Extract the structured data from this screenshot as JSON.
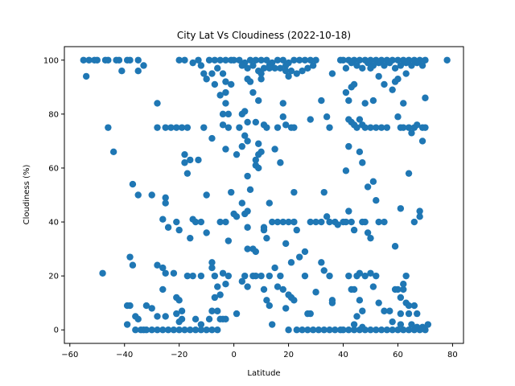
{
  "chart_data": {
    "type": "scatter",
    "title": "City Lat Vs Cloudiness (2022-10-18)",
    "xlabel": "Latitude",
    "ylabel": "Cloudiness  (%)",
    "xlim": [
      -62,
      84
    ],
    "ylim": [
      -5,
      105
    ],
    "xticks": [
      -60,
      -40,
      -20,
      0,
      20,
      40,
      60,
      80
    ],
    "yticks": [
      0,
      20,
      40,
      60,
      80,
      100
    ],
    "grid": false,
    "marker_color": "#1f77b4",
    "points": [
      [
        -55,
        100
      ],
      [
        -53,
        100
      ],
      [
        -51,
        100
      ],
      [
        -50,
        100
      ],
      [
        -47,
        100
      ],
      [
        -46,
        100
      ],
      [
        -43,
        100
      ],
      [
        -42,
        100
      ],
      [
        -39,
        100
      ],
      [
        -38,
        100
      ],
      [
        -35,
        100
      ],
      [
        -54,
        94
      ],
      [
        -41,
        96
      ],
      [
        -35,
        96
      ],
      [
        -33,
        98
      ],
      [
        -46,
        75
      ],
      [
        -44,
        66
      ],
      [
        -48,
        21
      ],
      [
        -37,
        54
      ],
      [
        -38,
        27
      ],
      [
        -37,
        24
      ],
      [
        -35,
        50
      ],
      [
        -30,
        50
      ],
      [
        -28,
        84
      ],
      [
        -28,
        75
      ],
      [
        -25,
        75
      ],
      [
        -23,
        75
      ],
      [
        -21,
        75
      ],
      [
        -19,
        75
      ],
      [
        -17,
        75
      ],
      [
        -11,
        75
      ],
      [
        -16,
        63
      ],
      [
        -18,
        65
      ],
      [
        -18,
        62
      ],
      [
        -17,
        58
      ],
      [
        -13,
        63
      ],
      [
        -10,
        50
      ],
      [
        -25,
        49
      ],
      [
        -25,
        47
      ],
      [
        -26,
        41
      ],
      [
        -24,
        38
      ],
      [
        -21,
        40
      ],
      [
        -20,
        37
      ],
      [
        -16,
        34
      ],
      [
        -14,
        40
      ],
      [
        -12,
        40
      ],
      [
        -10,
        36
      ],
      [
        -15,
        41
      ],
      [
        -28,
        24
      ],
      [
        -26,
        23
      ],
      [
        -25,
        21
      ],
      [
        -26,
        15
      ],
      [
        -22,
        21
      ],
      [
        -21,
        12
      ],
      [
        -20,
        11
      ],
      [
        -17,
        20
      ],
      [
        -15,
        20
      ],
      [
        -12,
        20
      ],
      [
        -8,
        23
      ],
      [
        -8,
        25
      ],
      [
        -7,
        20
      ],
      [
        -6,
        16
      ],
      [
        -5,
        13
      ],
      [
        -7,
        12
      ],
      [
        -8,
        7
      ],
      [
        -6,
        7
      ],
      [
        -4,
        4
      ],
      [
        -39,
        9
      ],
      [
        -38,
        9
      ],
      [
        -36,
        5
      ],
      [
        -35,
        4
      ],
      [
        -32,
        9
      ],
      [
        -30,
        8
      ],
      [
        -28,
        5
      ],
      [
        -25,
        5
      ],
      [
        -21,
        6
      ],
      [
        -20,
        3
      ],
      [
        -19,
        4
      ],
      [
        -19,
        7
      ],
      [
        -14,
        4
      ],
      [
        -12,
        2
      ],
      [
        -9,
        4
      ],
      [
        -39,
        2
      ],
      [
        -36,
        0
      ],
      [
        -34,
        0
      ],
      [
        -33,
        0
      ],
      [
        -32,
        0
      ],
      [
        -30,
        0
      ],
      [
        -28,
        0
      ],
      [
        -26,
        0
      ],
      [
        -24,
        0
      ],
      [
        -22,
        0
      ],
      [
        -20,
        0
      ],
      [
        -18,
        0
      ],
      [
        -16,
        0
      ],
      [
        -14,
        0
      ],
      [
        -12,
        0
      ],
      [
        -10,
        0
      ],
      [
        -8,
        0
      ],
      [
        -6,
        0
      ],
      [
        -20,
        100
      ],
      [
        -18,
        100
      ],
      [
        -15,
        99
      ],
      [
        -13,
        100
      ],
      [
        -12,
        98
      ],
      [
        -9,
        100
      ],
      [
        -7,
        100
      ],
      [
        -5,
        100
      ],
      [
        -3,
        100
      ],
      [
        -1,
        100
      ],
      [
        -11,
        95
      ],
      [
        -10,
        93
      ],
      [
        -8,
        95
      ],
      [
        -6,
        97
      ],
      [
        -4,
        95
      ],
      [
        -3,
        92
      ],
      [
        -3,
        88
      ],
      [
        -3,
        84
      ],
      [
        -2,
        80
      ],
      [
        -4,
        80
      ],
      [
        -7,
        91
      ],
      [
        -5,
        87
      ],
      [
        -8,
        71
      ],
      [
        -4,
        76
      ],
      [
        -2,
        75
      ],
      [
        -1,
        91
      ],
      [
        -3,
        67
      ],
      [
        -1,
        51
      ],
      [
        1,
        42
      ],
      [
        -3,
        40
      ],
      [
        -5,
        40
      ],
      [
        -2,
        33
      ],
      [
        -4,
        21
      ],
      [
        -3,
        17
      ],
      [
        -2,
        20
      ],
      [
        -5,
        4
      ],
      [
        -3,
        4
      ],
      [
        0,
        43
      ],
      [
        1,
        6
      ],
      [
        0,
        100
      ],
      [
        2,
        100
      ],
      [
        4,
        99
      ],
      [
        6,
        100
      ],
      [
        8,
        100
      ],
      [
        10,
        100
      ],
      [
        12,
        100
      ],
      [
        14,
        99
      ],
      [
        16,
        100
      ],
      [
        18,
        100
      ],
      [
        20,
        99
      ],
      [
        22,
        100
      ],
      [
        24,
        100
      ],
      [
        26,
        100
      ],
      [
        28,
        100
      ],
      [
        30,
        100
      ],
      [
        3,
        98
      ],
      [
        5,
        97
      ],
      [
        7,
        98
      ],
      [
        9,
        96
      ],
      [
        11,
        97
      ],
      [
        13,
        98
      ],
      [
        15,
        97
      ],
      [
        17,
        97
      ],
      [
        19,
        98
      ],
      [
        21,
        96
      ],
      [
        23,
        95
      ],
      [
        25,
        96
      ],
      [
        27,
        97
      ],
      [
        29,
        98
      ],
      [
        1,
        65
      ],
      [
        2,
        75
      ],
      [
        3,
        80
      ],
      [
        4,
        81
      ],
      [
        5,
        77
      ],
      [
        3,
        68
      ],
      [
        4,
        72
      ],
      [
        5,
        70
      ],
      [
        5,
        93
      ],
      [
        6,
        92
      ],
      [
        7,
        88
      ],
      [
        8,
        77
      ],
      [
        8,
        61
      ],
      [
        8,
        63
      ],
      [
        9,
        60
      ],
      [
        9,
        85
      ],
      [
        10,
        66
      ],
      [
        10,
        95
      ],
      [
        11,
        76
      ],
      [
        12,
        75
      ],
      [
        16,
        75
      ],
      [
        18,
        84
      ],
      [
        18,
        79
      ],
      [
        19,
        76
      ],
      [
        21,
        75
      ],
      [
        22,
        75
      ],
      [
        13,
        97
      ],
      [
        15,
        67
      ],
      [
        17,
        62
      ],
      [
        20,
        94
      ],
      [
        19,
        96
      ],
      [
        5,
        57
      ],
      [
        6,
        52
      ],
      [
        9,
        65
      ],
      [
        9,
        69
      ],
      [
        10,
        93
      ],
      [
        3,
        47
      ],
      [
        4,
        43
      ],
      [
        5,
        44
      ],
      [
        5,
        38
      ],
      [
        7,
        30
      ],
      [
        8,
        29
      ],
      [
        5,
        30
      ],
      [
        4,
        20
      ],
      [
        3,
        18
      ],
      [
        5,
        16
      ],
      [
        7,
        20
      ],
      [
        8,
        20
      ],
      [
        10,
        20
      ],
      [
        11,
        37
      ],
      [
        11,
        38
      ],
      [
        12,
        34
      ],
      [
        13,
        47
      ],
      [
        14,
        40
      ],
      [
        16,
        40
      ],
      [
        18,
        40
      ],
      [
        20,
        40
      ],
      [
        22,
        40
      ],
      [
        13,
        20
      ],
      [
        11,
        15
      ],
      [
        13,
        9
      ],
      [
        12,
        11
      ],
      [
        15,
        23
      ],
      [
        16,
        16
      ],
      [
        17,
        20
      ],
      [
        18,
        15
      ],
      [
        19,
        32
      ],
      [
        20,
        13
      ],
      [
        21,
        25
      ],
      [
        22,
        51
      ],
      [
        22,
        40
      ],
      [
        23,
        37
      ],
      [
        24,
        27
      ],
      [
        26,
        29
      ],
      [
        26,
        20
      ],
      [
        14,
        2
      ],
      [
        19,
        8
      ],
      [
        21,
        12
      ],
      [
        22,
        11
      ],
      [
        20,
        0
      ],
      [
        23,
        0
      ],
      [
        25,
        0
      ],
      [
        27,
        0
      ],
      [
        29,
        0
      ],
      [
        31,
        0
      ],
      [
        33,
        0
      ],
      [
        35,
        0
      ],
      [
        37,
        0
      ],
      [
        39,
        0
      ],
      [
        27,
        6
      ],
      [
        28,
        6
      ],
      [
        30,
        14
      ],
      [
        32,
        25
      ],
      [
        33,
        22
      ],
      [
        35,
        20
      ],
      [
        36,
        11
      ],
      [
        36,
        10
      ],
      [
        37,
        40
      ],
      [
        35,
        40
      ],
      [
        32,
        40
      ],
      [
        30,
        40
      ],
      [
        28,
        40
      ],
      [
        33,
        51
      ],
      [
        34,
        42
      ],
      [
        38,
        39
      ],
      [
        40,
        40
      ],
      [
        41,
        40
      ],
      [
        28,
        78
      ],
      [
        32,
        85
      ],
      [
        34,
        79
      ],
      [
        35,
        75
      ],
      [
        36,
        95
      ],
      [
        39,
        100
      ],
      [
        40,
        100
      ],
      [
        42,
        100
      ],
      [
        44,
        100
      ],
      [
        46,
        100
      ],
      [
        48,
        100
      ],
      [
        50,
        100
      ],
      [
        52,
        100
      ],
      [
        54,
        100
      ],
      [
        56,
        100
      ],
      [
        58,
        100
      ],
      [
        60,
        100
      ],
      [
        62,
        100
      ],
      [
        64,
        100
      ],
      [
        66,
        100
      ],
      [
        68,
        100
      ],
      [
        70,
        100
      ],
      [
        78,
        100
      ],
      [
        41,
        97
      ],
      [
        43,
        99
      ],
      [
        45,
        98
      ],
      [
        47,
        97
      ],
      [
        49,
        99
      ],
      [
        51,
        98
      ],
      [
        53,
        99
      ],
      [
        55,
        98
      ],
      [
        57,
        99
      ],
      [
        59,
        97
      ],
      [
        61,
        98
      ],
      [
        63,
        99
      ],
      [
        65,
        98
      ],
      [
        67,
        99
      ],
      [
        69,
        98
      ],
      [
        41,
        88
      ],
      [
        42,
        85
      ],
      [
        43,
        90
      ],
      [
        44,
        91
      ],
      [
        42,
        78
      ],
      [
        43,
        77
      ],
      [
        44,
        76
      ],
      [
        45,
        75
      ],
      [
        46,
        78
      ],
      [
        47,
        76
      ],
      [
        48,
        75
      ],
      [
        50,
        75
      ],
      [
        52,
        75
      ],
      [
        54,
        75
      ],
      [
        56,
        75
      ],
      [
        58,
        89
      ],
      [
        59,
        92
      ],
      [
        60,
        93
      ],
      [
        60,
        79
      ],
      [
        61,
        75
      ],
      [
        62,
        84
      ],
      [
        63,
        95
      ],
      [
        64,
        75
      ],
      [
        65,
        73
      ],
      [
        66,
        75
      ],
      [
        67,
        76
      ],
      [
        69,
        75
      ],
      [
        70,
        75
      ],
      [
        69,
        70
      ],
      [
        70,
        86
      ],
      [
        53,
        94
      ],
      [
        55,
        91
      ],
      [
        50,
        97
      ],
      [
        48,
        84
      ],
      [
        42,
        68
      ],
      [
        46,
        66
      ],
      [
        41,
        59
      ],
      [
        47,
        62
      ],
      [
        49,
        53
      ],
      [
        51,
        55
      ],
      [
        52,
        48
      ],
      [
        53,
        40
      ],
      [
        55,
        40
      ],
      [
        59,
        31
      ],
      [
        61,
        45
      ],
      [
        64,
        58
      ],
      [
        66,
        40
      ],
      [
        68,
        44
      ],
      [
        68,
        42
      ],
      [
        51,
        85
      ],
      [
        62,
        75
      ],
      [
        42,
        44
      ],
      [
        43,
        40
      ],
      [
        44,
        37
      ],
      [
        47,
        40
      ],
      [
        48,
        40
      ],
      [
        49,
        36
      ],
      [
        50,
        34
      ],
      [
        42,
        20
      ],
      [
        43,
        15
      ],
      [
        44,
        15
      ],
      [
        45,
        20
      ],
      [
        46,
        21
      ],
      [
        47,
        7
      ],
      [
        48,
        20
      ],
      [
        50,
        21
      ],
      [
        51,
        16
      ],
      [
        52,
        20
      ],
      [
        53,
        10
      ],
      [
        55,
        7
      ],
      [
        57,
        7
      ],
      [
        58,
        3
      ],
      [
        59,
        15
      ],
      [
        60,
        15
      ],
      [
        61,
        12
      ],
      [
        61,
        6
      ],
      [
        62,
        15
      ],
      [
        62,
        17
      ],
      [
        63,
        20
      ],
      [
        63,
        10
      ],
      [
        64,
        6
      ],
      [
        64,
        9
      ],
      [
        66,
        9
      ],
      [
        67,
        6
      ],
      [
        46,
        11
      ],
      [
        45,
        5
      ],
      [
        44,
        2
      ],
      [
        47,
        1
      ],
      [
        40,
        0
      ],
      [
        42,
        0
      ],
      [
        44,
        0
      ],
      [
        46,
        0
      ],
      [
        48,
        0
      ],
      [
        50,
        0
      ],
      [
        52,
        0
      ],
      [
        54,
        0
      ],
      [
        56,
        0
      ],
      [
        58,
        0
      ],
      [
        60,
        0
      ],
      [
        62,
        0
      ],
      [
        64,
        0
      ],
      [
        66,
        0
      ],
      [
        68,
        0
      ],
      [
        70,
        0
      ],
      [
        71,
        2
      ],
      [
        61,
        2
      ],
      [
        67,
        1
      ],
      [
        69,
        1
      ],
      [
        65,
        2
      ]
    ]
  }
}
